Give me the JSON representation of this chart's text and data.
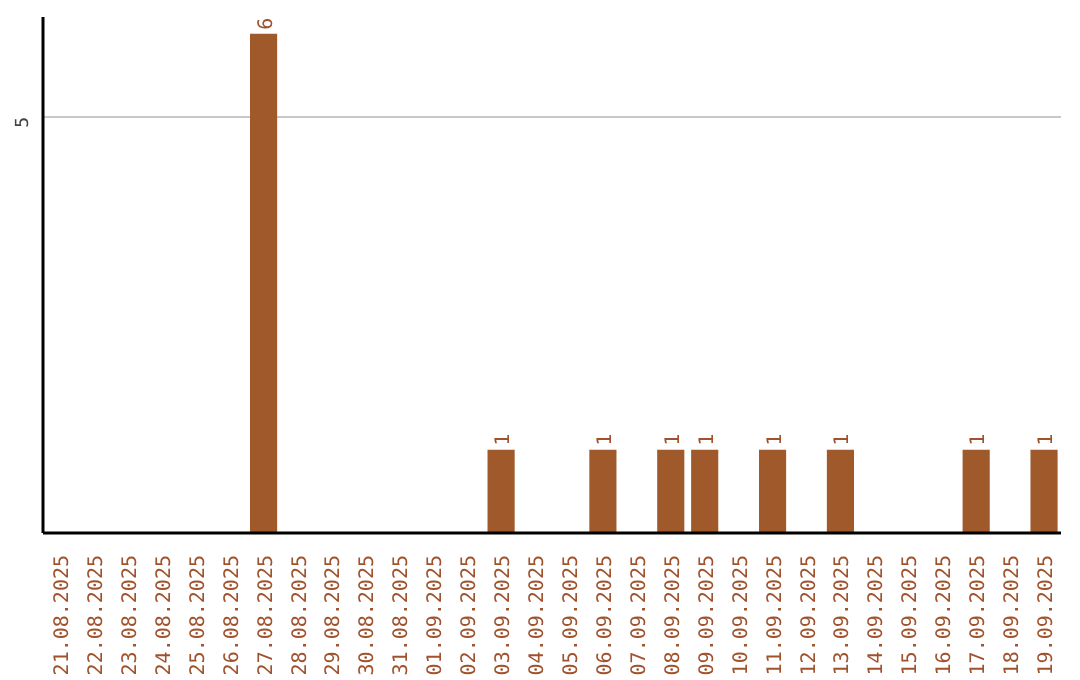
{
  "chart_data": {
    "type": "bar",
    "categories": [
      "21.08.2025",
      "22.08.2025",
      "23.08.2025",
      "24.08.2025",
      "25.08.2025",
      "26.08.2025",
      "27.08.2025",
      "28.08.2025",
      "29.08.2025",
      "30.08.2025",
      "31.08.2025",
      "01.09.2025",
      "02.09.2025",
      "03.09.2025",
      "04.09.2025",
      "05.09.2025",
      "06.09.2025",
      "07.09.2025",
      "08.09.2025",
      "09.09.2025",
      "10.09.2025",
      "11.09.2025",
      "12.09.2025",
      "13.09.2025",
      "14.09.2025",
      "15.09.2025",
      "16.09.2025",
      "17.09.2025",
      "18.09.2025",
      "19.09.2025"
    ],
    "values": [
      0,
      0,
      0,
      0,
      0,
      0,
      6,
      0,
      0,
      0,
      0,
      0,
      0,
      1,
      0,
      0,
      1,
      0,
      1,
      1,
      0,
      1,
      0,
      1,
      0,
      0,
      0,
      1,
      0,
      1
    ],
    "value_labels": [
      null,
      null,
      null,
      null,
      null,
      null,
      "6",
      null,
      null,
      null,
      null,
      null,
      null,
      "1",
      null,
      null,
      "1",
      null,
      "1",
      "1",
      null,
      "1",
      null,
      "1",
      null,
      null,
      null,
      "1",
      null,
      "1"
    ],
    "color": "#a0592b",
    "ylim": [
      0,
      6.2
    ],
    "yticks": [
      5
    ],
    "grid": "y"
  }
}
